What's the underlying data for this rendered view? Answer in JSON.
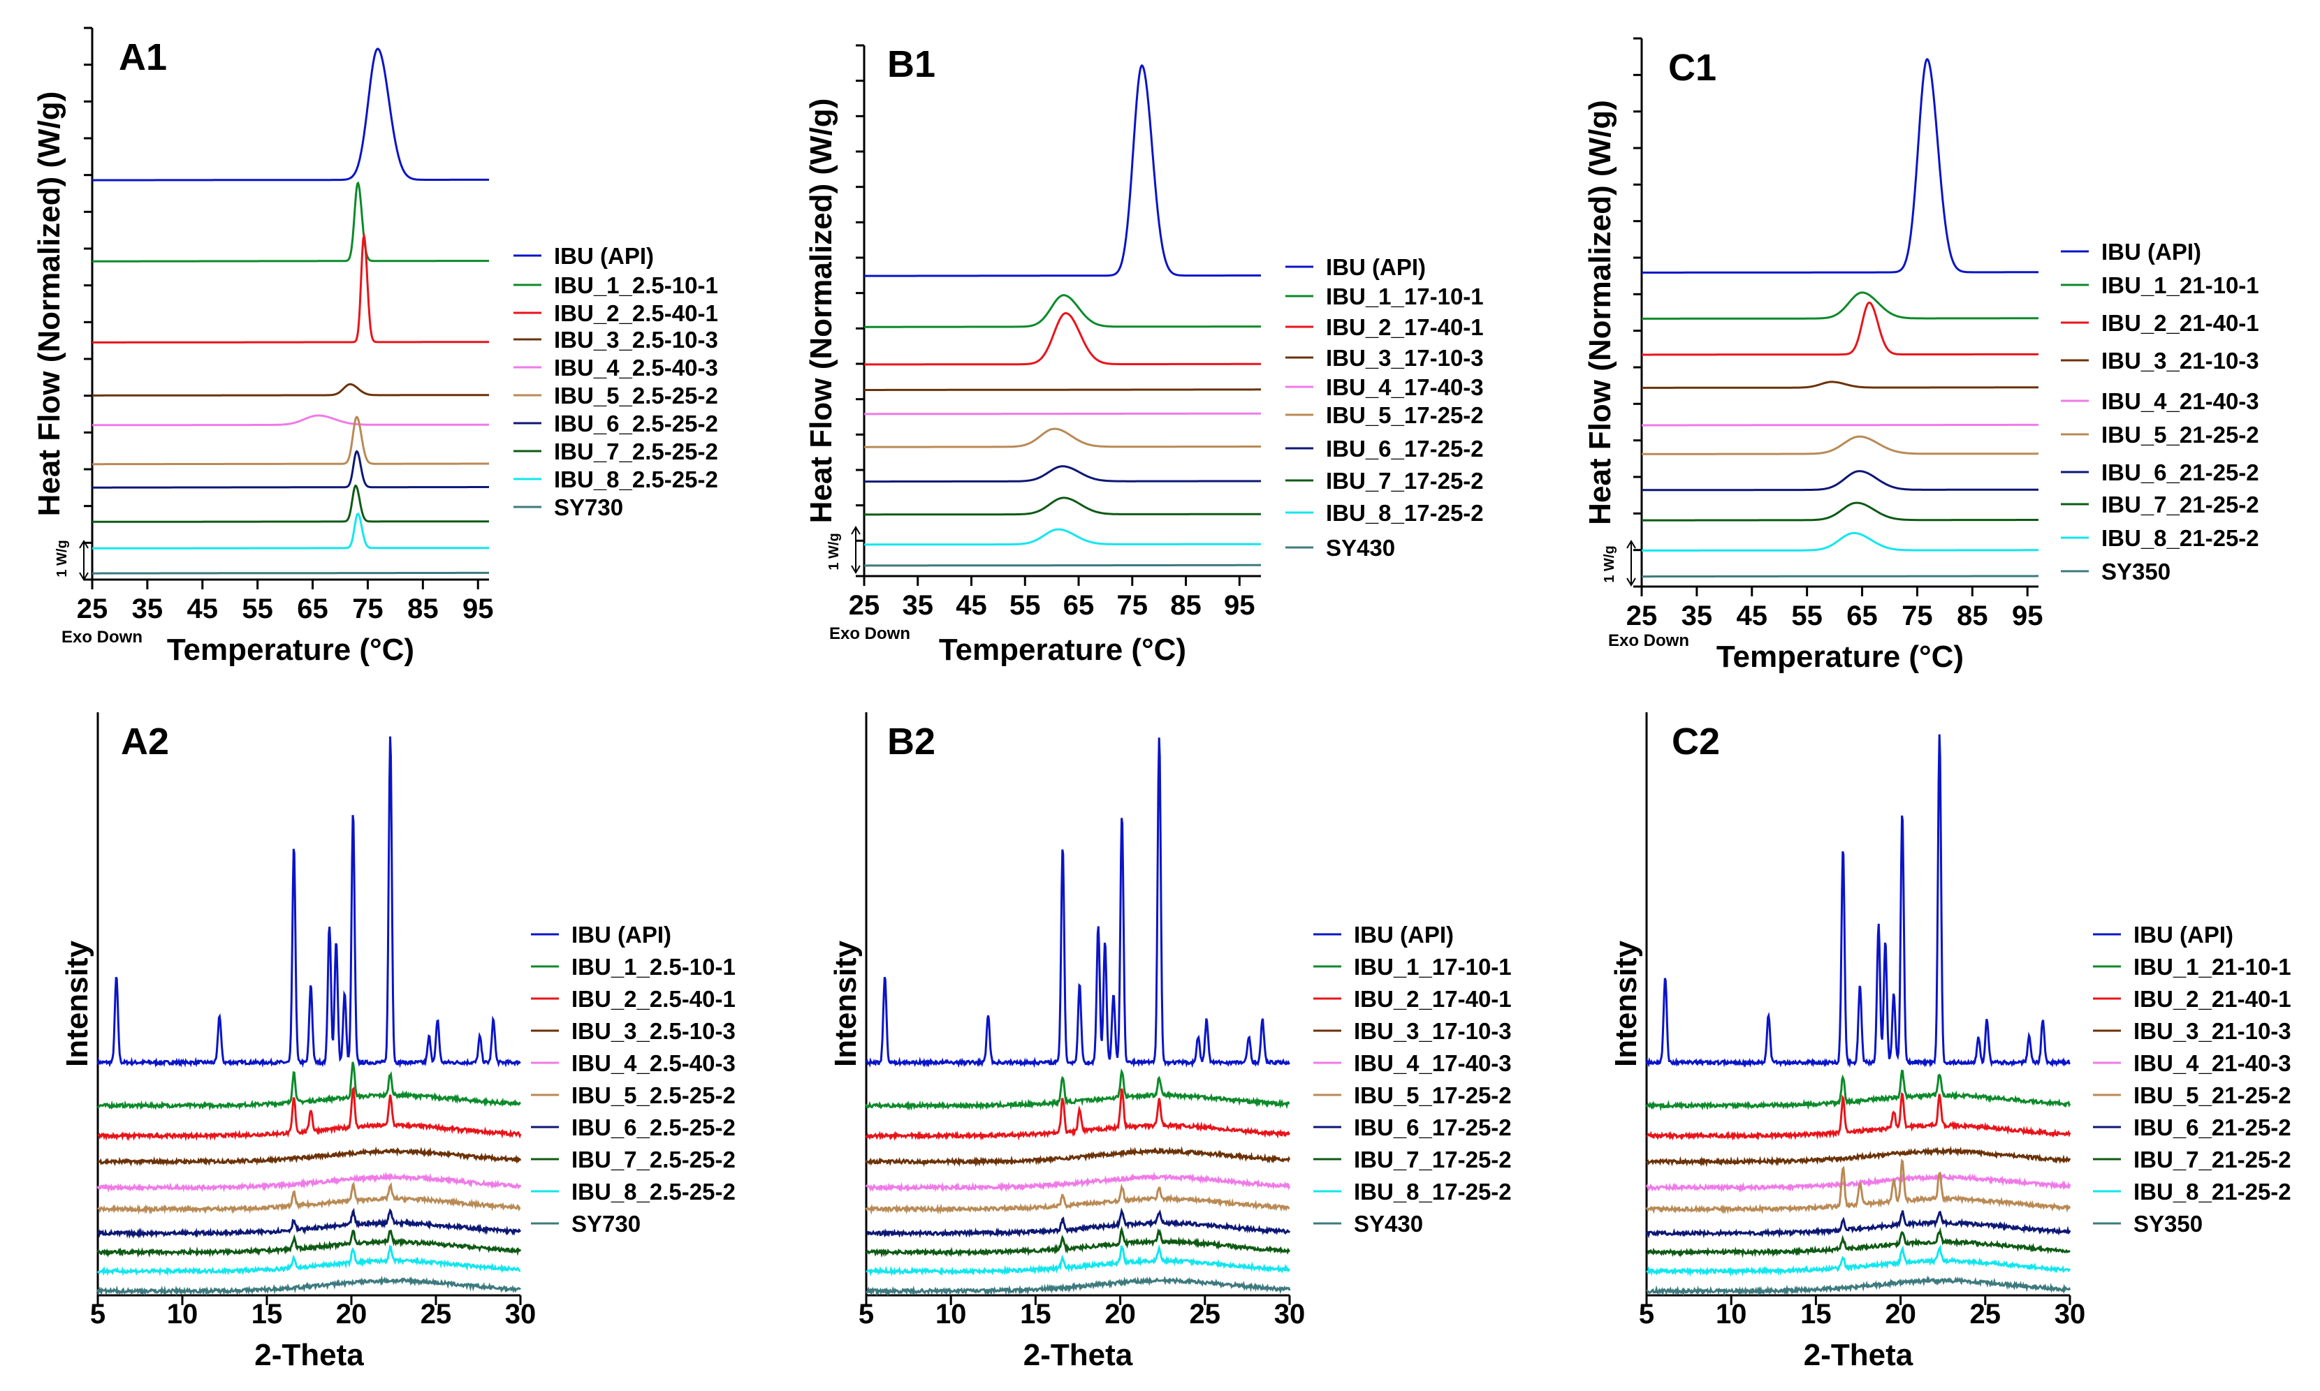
{
  "chart_data": [
    {
      "type": "line",
      "panel": "A1",
      "xlabel": "Temperature (°C)",
      "ylabel": "Heat Flow (Normalized) (W/g)",
      "xticks": [
        25,
        35,
        45,
        55,
        65,
        75,
        85,
        95
      ],
      "xlim": [
        25,
        97
      ],
      "scale_label": "1 W/g",
      "exo_label": "Exo Down",
      "series": [
        {
          "name": "IBU (API)",
          "color": "#0a14c8",
          "offset": 12.8,
          "base": 0.0,
          "peaks": [
            [
              76.8,
              4.2,
              1.7
            ]
          ]
        },
        {
          "name": "IBU_1_2.5-10-1",
          "color": "#0c8a2a",
          "offset": 10.2,
          "base": 0.0,
          "peaks": [
            [
              73.2,
              2.5,
              0.6
            ]
          ]
        },
        {
          "name": "IBU_2_2.5-40-1",
          "color": "#e8141a",
          "offset": 7.6,
          "base": 0.0,
          "peaks": [
            [
              74.3,
              3.4,
              0.5
            ]
          ]
        },
        {
          "name": "IBU_3_2.5-10-3",
          "color": "#6b3208",
          "offset": 5.9,
          "base": 0.0,
          "peaks": [
            [
              71.8,
              0.35,
              1.2
            ]
          ]
        },
        {
          "name": "IBU_4_2.5-40-3",
          "color": "#f07ae8",
          "offset": 4.95,
          "base": 0.0,
          "peaks": [
            [
              66,
              0.3,
              2.5
            ]
          ]
        },
        {
          "name": "IBU_5_2.5-25-2",
          "color": "#b98a55",
          "offset": 3.7,
          "base": 0.0,
          "peaks": [
            [
              73,
              1.5,
              0.7
            ]
          ]
        },
        {
          "name": "IBU_6_2.5-25-2",
          "color": "#0d1775",
          "offset": 2.95,
          "base": 0.0,
          "peaks": [
            [
              73,
              1.15,
              0.6
            ]
          ]
        },
        {
          "name": "IBU_7_2.5-25-2",
          "color": "#0e5a14",
          "offset": 1.85,
          "base": 0.0,
          "peaks": [
            [
              72.8,
              1.15,
              0.6
            ]
          ]
        },
        {
          "name": "IBU_8_2.5-25-2",
          "color": "#12e6ee",
          "offset": 1.0,
          "base": 0.0,
          "peaks": [
            [
              73.2,
              1.1,
              0.6
            ]
          ]
        },
        {
          "name": "SY730",
          "color": "#3d7a7e",
          "offset": 0.2,
          "base": 0.0,
          "peaks": []
        }
      ]
    },
    {
      "type": "line",
      "panel": "B1",
      "xlabel": "Temperature (°C)",
      "ylabel": "Heat Flow (Normalized) (W/g)",
      "xticks": [
        25,
        35,
        45,
        55,
        65,
        75,
        85,
        95
      ],
      "xlim": [
        25,
        99
      ],
      "scale_label": "1 W/g",
      "exo_label": "Exo Down",
      "series": [
        {
          "name": "IBU (API)",
          "color": "#0a14c8",
          "offset": 10.0,
          "base": 0.0,
          "peaks": [
            [
              76.8,
              7.0,
              1.6
            ]
          ]
        },
        {
          "name": "IBU_1_17-10-1",
          "color": "#0c8a2a",
          "offset": 8.3,
          "base": 0.0,
          "peaks": [
            [
              62.2,
              1.05,
              2.3
            ]
          ]
        },
        {
          "name": "IBU_2_17-40-1",
          "color": "#e8141a",
          "offset": 7.05,
          "base": 0.0,
          "peaks": [
            [
              62.6,
              1.7,
              2.2
            ]
          ]
        },
        {
          "name": "IBU_3_17-10-3",
          "color": "#6b3208",
          "offset": 6.2,
          "base": 0.0,
          "peaks": []
        },
        {
          "name": "IBU_4_17-40-3",
          "color": "#f07ae8",
          "offset": 5.4,
          "base": 0.0,
          "peaks": []
        },
        {
          "name": "IBU_5_17-25-2",
          "color": "#b98a55",
          "offset": 4.3,
          "base": 0.0,
          "peaks": [
            [
              60.5,
              0.6,
              2.6
            ]
          ]
        },
        {
          "name": "IBU_6_17-25-2",
          "color": "#0d1775",
          "offset": 3.15,
          "base": 0.0,
          "peaks": [
            [
              62,
              0.5,
              2.6
            ]
          ]
        },
        {
          "name": "IBU_7_17-25-2",
          "color": "#0e5a14",
          "offset": 2.05,
          "base": 0.0,
          "peaks": [
            [
              62.2,
              0.55,
              2.6
            ]
          ]
        },
        {
          "name": "IBU_8_17-25-2",
          "color": "#12e6ee",
          "offset": 1.05,
          "base": 0.0,
          "peaks": [
            [
              61.2,
              0.5,
              2.6
            ]
          ]
        },
        {
          "name": "SY430",
          "color": "#3d7a7e",
          "offset": 0.35,
          "base": 0.0,
          "peaks": []
        }
      ]
    },
    {
      "type": "line",
      "panel": "C1",
      "xlabel": "Temperature (°C)",
      "ylabel": "Heat Flow (Normalized) (W/g)",
      "xticks": [
        25,
        35,
        45,
        55,
        65,
        75,
        85,
        95
      ],
      "xlim": [
        25,
        97
      ],
      "scale_label": "1 W/g",
      "exo_label": "Exo Down",
      "series": [
        {
          "name": "IBU (API)",
          "color": "#0a14c8",
          "offset": 10.9,
          "base": 0.0,
          "peaks": [
            [
              76.8,
              7.4,
              1.6
            ]
          ]
        },
        {
          "name": "IBU_1_21-10-1",
          "color": "#0c8a2a",
          "offset": 9.3,
          "base": 0.0,
          "peaks": [
            [
              65,
              0.9,
              2.4
            ]
          ]
        },
        {
          "name": "IBU_2_21-40-1",
          "color": "#e8141a",
          "offset": 8.05,
          "base": 0.0,
          "peaks": [
            [
              66.3,
              1.8,
              1.3
            ]
          ]
        },
        {
          "name": "IBU_3_21-10-3",
          "color": "#6b3208",
          "offset": 6.9,
          "base": 0.0,
          "peaks": [
            [
              59.5,
              0.2,
              2.0
            ]
          ]
        },
        {
          "name": "IBU_4_21-40-3",
          "color": "#f07ae8",
          "offset": 5.6,
          "base": 0.0,
          "peaks": []
        },
        {
          "name": "IBU_5_21-25-2",
          "color": "#b98a55",
          "offset": 4.6,
          "base": 0.0,
          "peaks": [
            [
              64.5,
              0.6,
              2.8
            ]
          ]
        },
        {
          "name": "IBU_6_21-25-2",
          "color": "#0d1775",
          "offset": 3.35,
          "base": 0.0,
          "peaks": [
            [
              64.5,
              0.65,
              2.6
            ]
          ]
        },
        {
          "name": "IBU_7_21-25-2",
          "color": "#0e5a14",
          "offset": 2.3,
          "base": 0.0,
          "peaks": [
            [
              64,
              0.6,
              2.6
            ]
          ]
        },
        {
          "name": "IBU_8_21-25-2",
          "color": "#12e6ee",
          "offset": 1.25,
          "base": 0.0,
          "peaks": [
            [
              63.5,
              0.6,
              2.6
            ]
          ]
        },
        {
          "name": "SY350",
          "color": "#3d7a7e",
          "offset": 0.35,
          "base": 0.0,
          "peaks": []
        }
      ]
    },
    {
      "type": "line",
      "panel": "A2",
      "xlabel": "2-Theta",
      "ylabel": "Intensity",
      "xticks": [
        5,
        10,
        15,
        20,
        25,
        30
      ],
      "xlim": [
        5,
        30
      ],
      "series": [
        {
          "name": "IBU (API)",
          "color": "#0a14c8",
          "offset": 2.7,
          "peaks": [
            [
              6.1,
              1.0
            ],
            [
              12.2,
              0.55
            ],
            [
              16.6,
              2.5
            ],
            [
              17.6,
              0.9
            ],
            [
              18.7,
              1.6
            ],
            [
              19.1,
              1.4
            ],
            [
              19.6,
              0.8
            ],
            [
              20.1,
              2.9
            ],
            [
              22.3,
              3.8
            ],
            [
              24.6,
              0.3
            ],
            [
              25.1,
              0.5
            ],
            [
              27.6,
              0.3
            ],
            [
              28.4,
              0.5
            ]
          ]
        },
        {
          "name": "IBU_1_2.5-10-1",
          "color": "#0c8a2a",
          "offset": 2.2,
          "peaks": [
            [
              16.6,
              0.35
            ],
            [
              20.1,
              0.4
            ],
            [
              22.3,
              0.25
            ]
          ]
        },
        {
          "name": "IBU_2_2.5-40-1",
          "color": "#e8141a",
          "offset": 1.85,
          "peaks": [
            [
              16.6,
              0.4
            ],
            [
              17.6,
              0.25
            ],
            [
              20.1,
              0.45
            ],
            [
              22.3,
              0.35
            ]
          ]
        },
        {
          "name": "IBU_3_2.5-10-3",
          "color": "#6b3208",
          "offset": 1.55,
          "peaks": []
        },
        {
          "name": "IBU_4_2.5-40-3",
          "color": "#f07ae8",
          "offset": 1.25,
          "peaks": []
        },
        {
          "name": "IBU_5_2.5-25-2",
          "color": "#b98a55",
          "offset": 1.0,
          "peaks": [
            [
              16.6,
              0.15
            ],
            [
              20.1,
              0.18
            ],
            [
              22.3,
              0.15
            ]
          ]
        },
        {
          "name": "IBU_6_2.5-25-2",
          "color": "#0d1775",
          "offset": 0.72,
          "peaks": [
            [
              16.6,
              0.12
            ],
            [
              20.1,
              0.15
            ],
            [
              22.3,
              0.15
            ]
          ]
        },
        {
          "name": "IBU_7_2.5-25-2",
          "color": "#0e5a14",
          "offset": 0.5,
          "peaks": [
            [
              16.6,
              0.12
            ],
            [
              20.1,
              0.15
            ],
            [
              22.3,
              0.12
            ]
          ]
        },
        {
          "name": "IBU_8_2.5-25-2",
          "color": "#12e6ee",
          "offset": 0.28,
          "peaks": [
            [
              16.6,
              0.12
            ],
            [
              20.1,
              0.15
            ],
            [
              22.3,
              0.15
            ]
          ]
        },
        {
          "name": "SY730",
          "color": "#3d7a7e",
          "offset": 0.05,
          "peaks": []
        }
      ]
    },
    {
      "type": "line",
      "panel": "B2",
      "xlabel": "2-Theta",
      "ylabel": "Intensity",
      "xticks": [
        5,
        10,
        15,
        20,
        25,
        30
      ],
      "xlim": [
        5,
        30
      ],
      "series": [
        {
          "name": "IBU (API)",
          "color": "#0a14c8",
          "offset": 2.7,
          "peaks": [
            [
              6.1,
              1.0
            ],
            [
              12.2,
              0.55
            ],
            [
              16.6,
              2.5
            ],
            [
              17.6,
              0.9
            ],
            [
              18.7,
              1.6
            ],
            [
              19.1,
              1.4
            ],
            [
              19.6,
              0.8
            ],
            [
              20.1,
              2.9
            ],
            [
              22.3,
              3.8
            ],
            [
              24.6,
              0.3
            ],
            [
              25.1,
              0.5
            ],
            [
              27.6,
              0.3
            ],
            [
              28.4,
              0.5
            ]
          ]
        },
        {
          "name": "IBU_1_17-10-1",
          "color": "#0c8a2a",
          "offset": 2.2,
          "peaks": [
            [
              16.6,
              0.3
            ],
            [
              20.1,
              0.3
            ],
            [
              22.3,
              0.2
            ]
          ]
        },
        {
          "name": "IBU_2_17-40-1",
          "color": "#e8141a",
          "offset": 1.85,
          "peaks": [
            [
              16.6,
              0.4
            ],
            [
              17.6,
              0.25
            ],
            [
              20.1,
              0.45
            ],
            [
              22.3,
              0.3
            ]
          ]
        },
        {
          "name": "IBU_3_17-10-3",
          "color": "#6b3208",
          "offset": 1.55,
          "peaks": []
        },
        {
          "name": "IBU_4_17-40-3",
          "color": "#f07ae8",
          "offset": 1.25,
          "peaks": []
        },
        {
          "name": "IBU_5_17-25-2",
          "color": "#b98a55",
          "offset": 1.0,
          "peaks": [
            [
              16.6,
              0.12
            ],
            [
              20.1,
              0.15
            ],
            [
              22.3,
              0.12
            ]
          ]
        },
        {
          "name": "IBU_6_17-25-2",
          "color": "#0d1775",
          "offset": 0.72,
          "peaks": [
            [
              16.6,
              0.12
            ],
            [
              20.1,
              0.15
            ],
            [
              22.3,
              0.12
            ]
          ]
        },
        {
          "name": "IBU_7_17-25-2",
          "color": "#0e5a14",
          "offset": 0.5,
          "peaks": [
            [
              16.6,
              0.12
            ],
            [
              20.1,
              0.15
            ],
            [
              22.3,
              0.12
            ]
          ]
        },
        {
          "name": "IBU_8_17-25-2",
          "color": "#12e6ee",
          "offset": 0.28,
          "peaks": [
            [
              16.6,
              0.12
            ],
            [
              20.1,
              0.18
            ],
            [
              22.3,
              0.15
            ]
          ]
        },
        {
          "name": "SY430",
          "color": "#3d7a7e",
          "offset": 0.05,
          "peaks": []
        }
      ]
    },
    {
      "type": "line",
      "panel": "C2",
      "xlabel": "2-Theta",
      "ylabel": "Intensity",
      "xticks": [
        5,
        10,
        15,
        20,
        25,
        30
      ],
      "xlim": [
        5,
        30
      ],
      "series": [
        {
          "name": "IBU (API)",
          "color": "#0a14c8",
          "offset": 2.7,
          "peaks": [
            [
              6.1,
              1.0
            ],
            [
              12.2,
              0.55
            ],
            [
              16.6,
              2.5
            ],
            [
              17.6,
              0.9
            ],
            [
              18.7,
              1.6
            ],
            [
              19.1,
              1.4
            ],
            [
              19.6,
              0.8
            ],
            [
              20.1,
              2.9
            ],
            [
              22.3,
              3.8
            ],
            [
              24.6,
              0.3
            ],
            [
              25.1,
              0.5
            ],
            [
              27.6,
              0.3
            ],
            [
              28.4,
              0.5
            ]
          ]
        },
        {
          "name": "IBU_1_21-10-1",
          "color": "#0c8a2a",
          "offset": 2.2,
          "peaks": [
            [
              16.6,
              0.3
            ],
            [
              20.1,
              0.3
            ],
            [
              22.3,
              0.25
            ]
          ]
        },
        {
          "name": "IBU_2_21-40-1",
          "color": "#e8141a",
          "offset": 1.85,
          "peaks": [
            [
              16.6,
              0.4
            ],
            [
              19.6,
              0.2
            ],
            [
              20.1,
              0.4
            ],
            [
              22.3,
              0.35
            ]
          ]
        },
        {
          "name": "IBU_3_21-10-3",
          "color": "#6b3208",
          "offset": 1.55,
          "peaks": []
        },
        {
          "name": "IBU_4_21-40-3",
          "color": "#f07ae8",
          "offset": 1.25,
          "peaks": []
        },
        {
          "name": "IBU_5_21-25-2",
          "color": "#b98a55",
          "offset": 1.0,
          "peaks": [
            [
              16.6,
              0.45
            ],
            [
              17.6,
              0.25
            ],
            [
              19.6,
              0.25
            ],
            [
              20.1,
              0.45
            ],
            [
              22.3,
              0.3
            ]
          ]
        },
        {
          "name": "IBU_6_21-25-2",
          "color": "#0d1775",
          "offset": 0.72,
          "peaks": [
            [
              16.6,
              0.12
            ],
            [
              20.1,
              0.15
            ],
            [
              22.3,
              0.12
            ]
          ]
        },
        {
          "name": "IBU_7_21-25-2",
          "color": "#0e5a14",
          "offset": 0.5,
          "peaks": [
            [
              16.6,
              0.12
            ],
            [
              20.1,
              0.15
            ],
            [
              22.3,
              0.12
            ]
          ]
        },
        {
          "name": "IBU_8_21-25-2",
          "color": "#12e6ee",
          "offset": 0.28,
          "peaks": [
            [
              16.6,
              0.12
            ],
            [
              20.1,
              0.15
            ],
            [
              22.3,
              0.15
            ]
          ]
        },
        {
          "name": "SY350",
          "color": "#3d7a7e",
          "offset": 0.05,
          "peaks": []
        }
      ]
    }
  ]
}
